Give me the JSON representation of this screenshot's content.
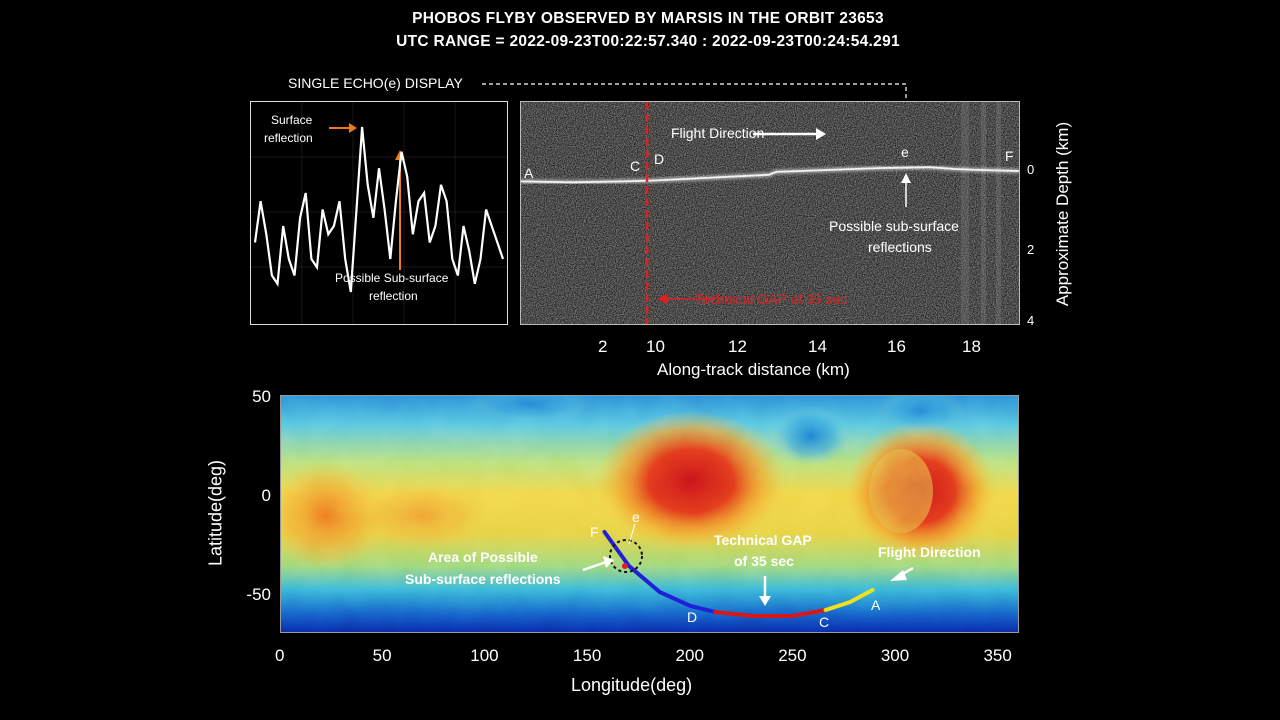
{
  "title": {
    "line1": "PHOBOS FLYBY OBSERVED BY MARSIS IN THE ORBIT 23653",
    "line2": "UTC RANGE = 2022-09-23T00:22:57.340 : 2022-09-23T00:24:54.291"
  },
  "echo_panel": {
    "header": "SINGLE ECHO(e) DISPLAY",
    "surface_label_1": "Surface",
    "surface_label_2": "reflection",
    "subsurface_label_1": "Possible Sub-surface",
    "subsurface_label_2": "reflection"
  },
  "radargram": {
    "flight_direction": "Flight Direction",
    "gap_label": "Technical GAP of 35 sec",
    "subsurface_label_1": "Possible sub-surface",
    "subsurface_label_2": "reflections",
    "point_a": "A",
    "point_c": "C",
    "point_d": "D",
    "point_e": "e",
    "point_f": "F",
    "xlabel": "Along-track distance (km)",
    "ylabel": "Approximate Depth (km)",
    "xticks": [
      "2",
      "10",
      "12",
      "14",
      "16",
      "18"
    ],
    "yticks": [
      "0",
      "2",
      "4"
    ]
  },
  "map": {
    "xlabel": "Longitude(deg)",
    "ylabel": "Latitude(deg)",
    "xticks": [
      "0",
      "50",
      "100",
      "150",
      "200",
      "250",
      "300",
      "350"
    ],
    "yticks": [
      "50",
      "0",
      "-50"
    ],
    "area_label_1": "Area of Possible",
    "area_label_2": "Sub-surface reflections",
    "gap_label_1": "Technical GAP",
    "gap_label_2": "of 35 sec",
    "flight_direction": "Flight Direction",
    "point_f": "F",
    "point_e": "e",
    "point_d": "D",
    "point_c": "C",
    "point_a": "A"
  },
  "chart_data": [
    {
      "type": "line",
      "name": "single-echo",
      "values": [
        0.3,
        0.55,
        0.35,
        0.1,
        0.05,
        0.4,
        0.2,
        0.1,
        0.45,
        0.6,
        0.2,
        0.15,
        0.5,
        0.35,
        0.4,
        0.55,
        0.2,
        0.0,
        0.5,
        1.0,
        0.65,
        0.45,
        0.75,
        0.5,
        0.2,
        0.55,
        0.85,
        0.7,
        0.35,
        0.55,
        0.6,
        0.3,
        0.4,
        0.65,
        0.55,
        0.2,
        0.1,
        0.4,
        0.25,
        0.05,
        0.2,
        0.5,
        0.4,
        0.3,
        0.2
      ]
    },
    {
      "type": "line",
      "name": "radargram-surface",
      "xlim": [
        0,
        19.5
      ],
      "ylim": [
        4,
        -1.5
      ],
      "x": [
        0,
        2,
        4,
        5.2,
        9.7,
        10,
        12,
        14,
        16,
        17,
        18,
        19.5
      ],
      "y": [
        0.6,
        0.65,
        0.6,
        0.55,
        0.25,
        0.1,
        0.0,
        -0.1,
        -0.15,
        -0.05,
        0.0,
        0.05
      ]
    },
    {
      "type": "line",
      "name": "ground-track",
      "xlim": [
        0,
        360
      ],
      "ylim": [
        -68,
        50
      ],
      "segments": [
        {
          "color": "#2020d8",
          "x": [
            158,
            170,
            185,
            200,
            212
          ],
          "y": [
            -18,
            -35,
            -48,
            -55,
            -58
          ]
        },
        {
          "color": "#d81818",
          "x": [
            212,
            230,
            250,
            266
          ],
          "y": [
            -58,
            -60,
            -60,
            -57
          ]
        },
        {
          "color": "#f0e020",
          "x": [
            266,
            278,
            289
          ],
          "y": [
            -57,
            -53,
            -47
          ]
        }
      ]
    }
  ]
}
